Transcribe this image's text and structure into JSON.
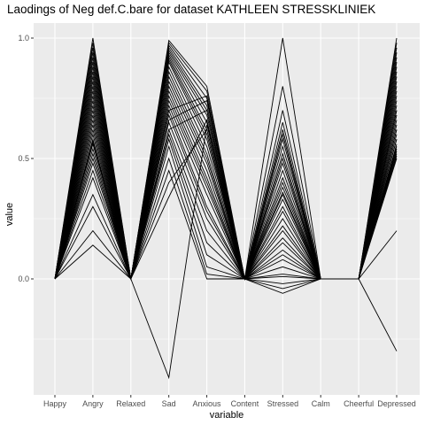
{
  "chart_data": {
    "type": "line",
    "title": "Laodings of Neg def.C.bare for dataset KATHLEEN STRESSKLINIEK",
    "xlabel": "variable",
    "ylabel": "value",
    "categories": [
      "Happy",
      "Angry",
      "Relaxed",
      "Sad",
      "Anxious",
      "Content",
      "Stressed",
      "Calm",
      "Cheerful",
      "Depressed"
    ],
    "ylim": [
      -0.48,
      1.05
    ],
    "yticks": [
      0.0,
      0.5,
      1.0
    ],
    "ytick_labels": [
      "0.0",
      "0.5",
      "1.0"
    ],
    "grid": true,
    "background": "#ebebeb",
    "line_color": "#000000",
    "series": [
      {
        "values": [
          0,
          1.0,
          0,
          0.99,
          0.8,
          0,
          0.01,
          0,
          0,
          1.0
        ]
      },
      {
        "values": [
          0,
          0.98,
          0,
          0.98,
          0.78,
          0,
          0.05,
          0,
          0,
          0.98
        ]
      },
      {
        "values": [
          0,
          0.96,
          0,
          0.97,
          0.75,
          0,
          -0.02,
          0,
          0,
          0.96
        ]
      },
      {
        "values": [
          0,
          0.94,
          0,
          0.96,
          0.72,
          0,
          0.1,
          0,
          0,
          0.94
        ]
      },
      {
        "values": [
          0,
          0.92,
          0,
          0.95,
          0.7,
          0,
          0.15,
          0,
          0,
          0.92
        ]
      },
      {
        "values": [
          0,
          0.9,
          0,
          0.94,
          0.68,
          0,
          0.2,
          0,
          0,
          0.9
        ]
      },
      {
        "values": [
          0,
          0.88,
          0,
          0.93,
          0.65,
          0,
          0.25,
          0,
          0,
          0.88
        ]
      },
      {
        "values": [
          0,
          0.86,
          0,
          0.92,
          0.62,
          0,
          0.3,
          0,
          0,
          0.86
        ]
      },
      {
        "values": [
          0,
          0.84,
          0,
          0.91,
          0.6,
          0,
          0.35,
          0,
          0,
          0.84
        ]
      },
      {
        "values": [
          0,
          0.82,
          0,
          0.9,
          0.58,
          0,
          0.4,
          0,
          0,
          0.82
        ]
      },
      {
        "values": [
          0,
          0.8,
          0,
          0.88,
          0.55,
          0,
          0.45,
          0,
          0,
          0.8
        ]
      },
      {
        "values": [
          0,
          0.78,
          0,
          0.86,
          0.52,
          0,
          0.5,
          0,
          0,
          0.78
        ]
      },
      {
        "values": [
          0,
          0.76,
          0,
          0.84,
          0.5,
          0,
          0.55,
          0,
          0,
          0.76
        ]
      },
      {
        "values": [
          0,
          0.74,
          0,
          0.82,
          0.48,
          0,
          0.6,
          0,
          0,
          0.74
        ]
      },
      {
        "values": [
          0,
          0.72,
          0,
          0.8,
          0.45,
          0,
          0.62,
          0,
          0,
          0.72
        ]
      },
      {
        "values": [
          0,
          0.7,
          0,
          0.78,
          0.42,
          0,
          0.65,
          0,
          0,
          0.7
        ]
      },
      {
        "values": [
          0,
          0.68,
          0,
          0.76,
          0.4,
          0,
          0.7,
          0,
          0,
          0.68
        ]
      },
      {
        "values": [
          0,
          0.66,
          0,
          0.74,
          0.38,
          0,
          0.8,
          0,
          0,
          0.66
        ]
      },
      {
        "values": [
          0,
          0.64,
          0,
          0.72,
          0.35,
          0,
          1.0,
          0,
          0,
          0.64
        ]
      },
      {
        "values": [
          0,
          0.62,
          0,
          0.7,
          0.3,
          0,
          0.58,
          0,
          0,
          0.62
        ]
      },
      {
        "values": [
          0,
          0.6,
          0,
          0.68,
          0.28,
          0,
          0.52,
          0,
          0,
          0.6
        ]
      },
      {
        "values": [
          0,
          0.58,
          0,
          0.65,
          0.25,
          0,
          0.48,
          0,
          0,
          0.58
        ]
      },
      {
        "values": [
          0,
          0.56,
          0,
          0.62,
          0.2,
          0,
          0.42,
          0,
          0,
          0.56
        ]
      },
      {
        "values": [
          0,
          0.54,
          0,
          0.6,
          0.15,
          0,
          0.38,
          0,
          0,
          0.55
        ]
      },
      {
        "values": [
          0,
          0.52,
          0,
          0.58,
          0.1,
          0,
          0.33,
          0,
          0,
          0.54
        ]
      },
      {
        "values": [
          0,
          0.5,
          0,
          0.55,
          0.05,
          0,
          0.28,
          0,
          0,
          0.53
        ]
      },
      {
        "values": [
          0,
          0.48,
          0,
          0.5,
          0.02,
          0,
          0.22,
          0,
          0,
          0.52
        ]
      },
      {
        "values": [
          0,
          0.45,
          0,
          0.45,
          0.0,
          0,
          0.17,
          0,
          0,
          0.51
        ]
      },
      {
        "values": [
          0,
          0.42,
          0,
          0.4,
          0.62,
          0,
          0.12,
          0,
          0,
          0.5
        ]
      },
      {
        "values": [
          0,
          0.35,
          0,
          0.34,
          0.66,
          0,
          0.08,
          0,
          0,
          0.2
        ]
      },
      {
        "values": [
          0,
          0.2,
          0,
          0.62,
          0.7,
          0,
          -0.04,
          0,
          0,
          0.58
        ]
      },
      {
        "values": [
          0,
          0.14,
          0,
          0.66,
          0.74,
          0,
          -0.06,
          0,
          0,
          0.62
        ]
      },
      {
        "values": [
          0,
          0.3,
          0,
          0.7,
          0.76,
          0,
          0.02,
          0,
          0,
          0.7
        ]
      },
      {
        "values": [
          0,
          0.57,
          0,
          -0.41,
          0.64,
          0,
          0.36,
          0,
          0,
          -0.3
        ]
      }
    ]
  }
}
